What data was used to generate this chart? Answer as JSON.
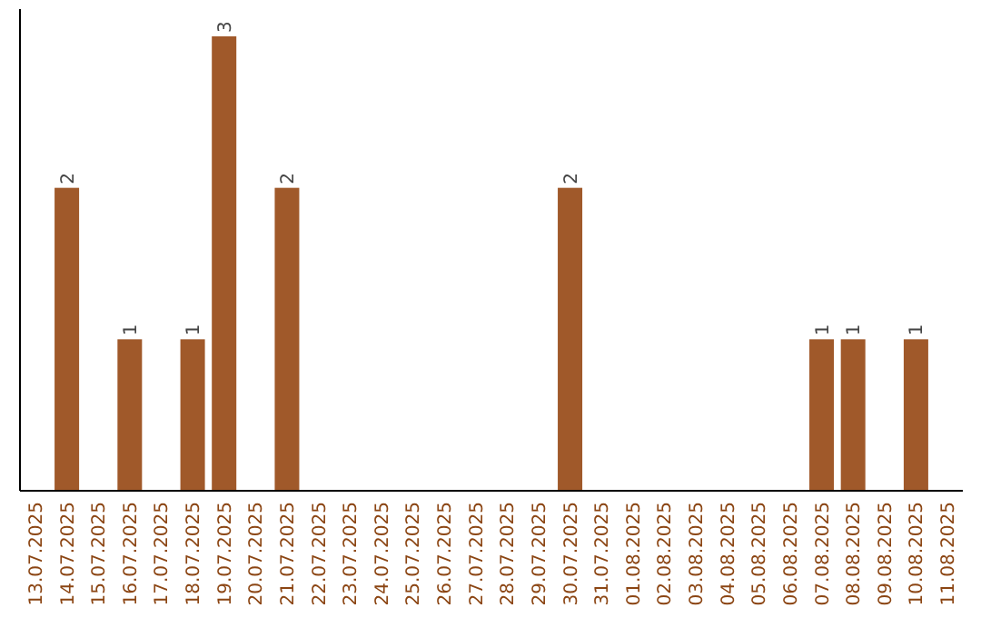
{
  "chart_data": {
    "type": "bar",
    "categories": [
      "13.07.2025",
      "14.07.2025",
      "15.07.2025",
      "16.07.2025",
      "17.07.2025",
      "18.07.2025",
      "19.07.2025",
      "20.07.2025",
      "21.07.2025",
      "22.07.2025",
      "23.07.2025",
      "24.07.2025",
      "25.07.2025",
      "26.07.2025",
      "27.07.2025",
      "28.07.2025",
      "29.07.2025",
      "30.07.2025",
      "31.07.2025",
      "01.08.2025",
      "02.08.2025",
      "03.08.2025",
      "04.08.2025",
      "05.08.2025",
      "06.08.2025",
      "07.08.2025",
      "08.08.2025",
      "09.08.2025",
      "10.08.2025",
      "11.08.2025"
    ],
    "values": [
      0,
      2,
      0,
      1,
      0,
      1,
      3,
      0,
      2,
      0,
      0,
      0,
      0,
      0,
      0,
      0,
      0,
      2,
      0,
      0,
      0,
      0,
      0,
      0,
      0,
      1,
      1,
      0,
      1,
      0
    ],
    "value_labels": [
      null,
      "2",
      null,
      "1",
      null,
      "1",
      "3",
      null,
      "2",
      null,
      null,
      null,
      null,
      null,
      null,
      null,
      null,
      "2",
      null,
      null,
      null,
      null,
      null,
      null,
      null,
      "1",
      "1",
      null,
      "1",
      null
    ],
    "color": "#a0592a"
  }
}
